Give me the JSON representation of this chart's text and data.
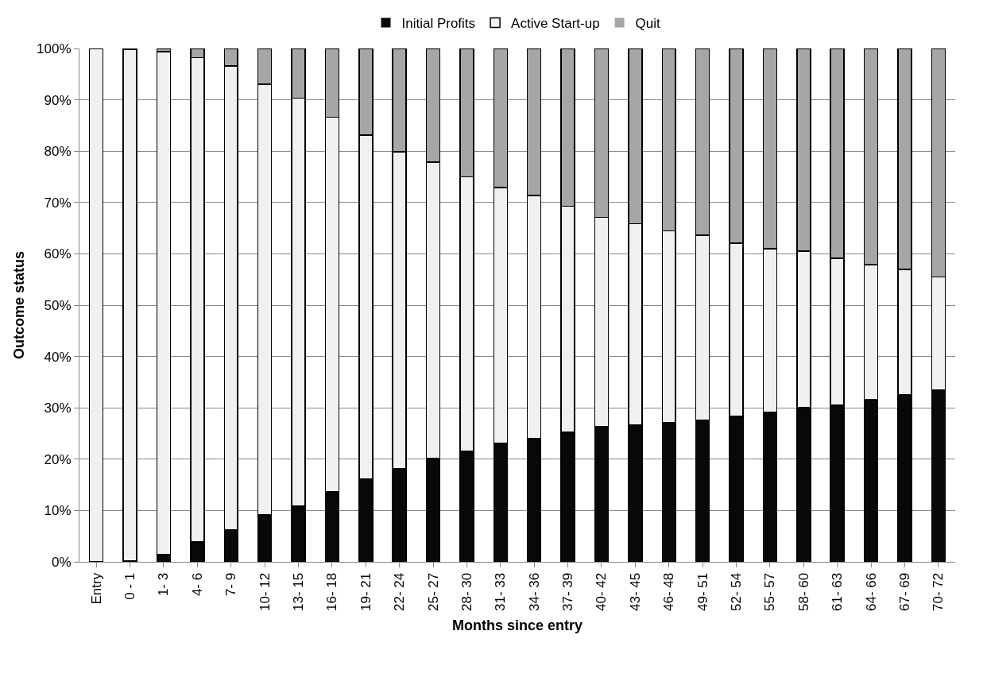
{
  "chart_data": {
    "type": "bar",
    "stacked": true,
    "xlabel": "Months since entry",
    "ylabel": "Outcome status",
    "categories": [
      "Entry",
      "0 - 1",
      "1- 3",
      "4- 6",
      "7- 9",
      "10- 12",
      "13- 15",
      "16- 18",
      "19- 21",
      "22- 24",
      "25- 27",
      "28- 30",
      "31- 33",
      "34- 36",
      "37- 39",
      "40- 42",
      "43- 45",
      "46- 48",
      "49- 51",
      "52- 54",
      "55- 57",
      "58- 60",
      "61- 63",
      "64- 66",
      "67- 69",
      "70- 72"
    ],
    "series": [
      {
        "name": "Initial Profits",
        "color": "#080808",
        "values": [
          0,
          0.2,
          1.4,
          3.9,
          6.3,
          9.2,
          10.8,
          13.6,
          16.2,
          18.2,
          20.2,
          21.6,
          23.1,
          24.0,
          25.3,
          26.3,
          26.7,
          27.2,
          27.6,
          28.3,
          29.1,
          30.0,
          30.5,
          31.6,
          32.6,
          33.5
        ]
      },
      {
        "name": "Active Start-up",
        "color": "#f0f0f0",
        "values": [
          100,
          99.6,
          98.0,
          94.3,
          90.3,
          83.8,
          79.5,
          73.0,
          66.9,
          61.7,
          57.7,
          53.4,
          49.8,
          47.4,
          44.0,
          40.8,
          39.2,
          37.3,
          36.0,
          33.8,
          31.9,
          30.5,
          28.6,
          26.3,
          24.4,
          22.0
        ]
      },
      {
        "name": "Quit",
        "color": "#a6a6a6",
        "values": [
          0,
          0.2,
          0.6,
          1.8,
          3.4,
          7.0,
          9.7,
          13.4,
          16.9,
          20.1,
          22.1,
          25.0,
          27.1,
          28.6,
          30.7,
          32.9,
          34.1,
          35.5,
          36.4,
          37.9,
          39.0,
          39.5,
          40.9,
          42.1,
          43.0,
          44.5
        ]
      }
    ],
    "ylim": [
      0,
      100
    ],
    "yticks": [
      {
        "value": 0,
        "label": "0%"
      },
      {
        "value": 10,
        "label": "10%"
      },
      {
        "value": 20,
        "label": "20%"
      },
      {
        "value": 30,
        "label": "30%"
      },
      {
        "value": 40,
        "label": "40%"
      },
      {
        "value": 50,
        "label": "50%"
      },
      {
        "value": 60,
        "label": "60%"
      },
      {
        "value": 70,
        "label": "70%"
      },
      {
        "value": 80,
        "label": "80%"
      },
      {
        "value": 90,
        "label": "90%"
      },
      {
        "value": 100,
        "label": "100%"
      }
    ],
    "grid": "y",
    "legend": "top"
  }
}
